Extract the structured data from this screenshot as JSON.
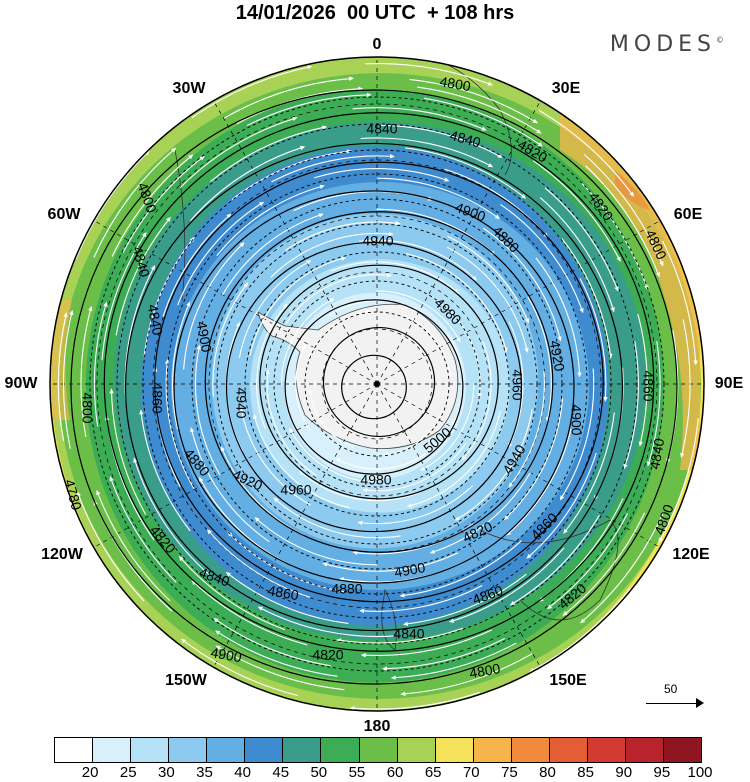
{
  "title": "14/01/2026  00 UTC  + 108 hrs",
  "brand": "MODES",
  "brand_mark": "©",
  "longitude_labels": {
    "lon_0": "0",
    "lon_30e": "30E",
    "lon_60e": "60E",
    "lon_90e": "90E",
    "lon_120e": "120E",
    "lon_150e": "150E",
    "lon_180": "180",
    "lon_150w": "150W",
    "lon_120w": "120W",
    "lon_90w": "90W",
    "lon_60w": "60W",
    "lon_30w": "30W"
  },
  "reference_vector": {
    "label": "50"
  },
  "colorbar": {
    "ticks": [
      "20",
      "25",
      "30",
      "35",
      "40",
      "45",
      "50",
      "55",
      "60",
      "65",
      "70",
      "75",
      "80",
      "85",
      "90",
      "95",
      "100"
    ],
    "colors": [
      "#ffffff",
      "#d7f0fb",
      "#b5e2f7",
      "#8ccaf0",
      "#63aee3",
      "#3f8bcf",
      "#3a9d8a",
      "#3cac55",
      "#6bbf49",
      "#a8d255",
      "#f4e25a",
      "#f6b54b",
      "#f08a3c",
      "#e35e35",
      "#d33a31",
      "#b9232c",
      "#8f1520"
    ]
  },
  "chart_data": {
    "type": "contour",
    "projection": "south-polar-stereographic",
    "field": "geopotential height contours with wind speed shading and streamlines",
    "contour_levels": [
      4780,
      4800,
      4820,
      4840,
      4860,
      4880,
      4900,
      4920,
      4940,
      4960,
      4980,
      5000
    ],
    "shading_units_levels": [
      20,
      25,
      30,
      35,
      40,
      45,
      50,
      55,
      60,
      65,
      70,
      75,
      80,
      85,
      90,
      95,
      100
    ],
    "contour_labels_printed": [
      "4780",
      "4800",
      "4820",
      "4840",
      "4860",
      "4880",
      "4900",
      "4920",
      "4940",
      "4960",
      "4980",
      "5000"
    ]
  }
}
